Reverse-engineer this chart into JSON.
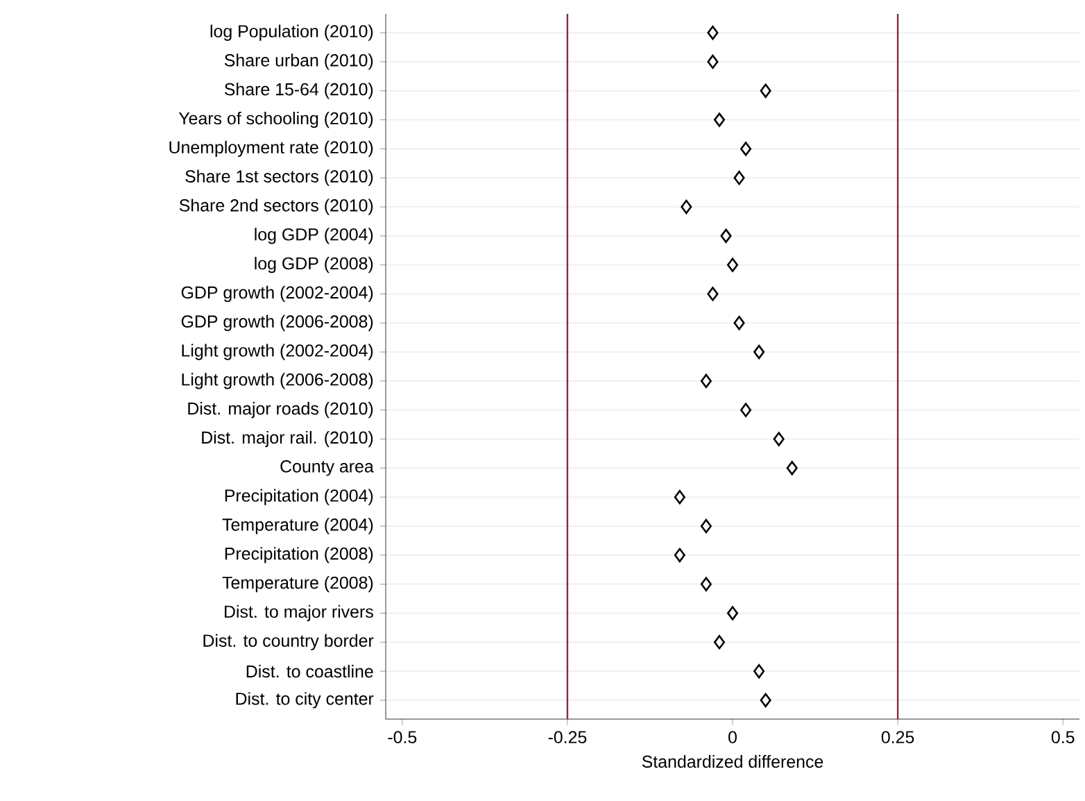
{
  "chart_data": {
    "type": "scatter",
    "orientation": "horizontal",
    "xlabel": "Standardized difference",
    "categories": [
      "log Population (2010)",
      "Share urban (2010)",
      "Share 15-64 (2010)",
      "Years of schooling (2010)",
      "Unemployment rate (2010)",
      "Share 1st sectors (2010)",
      "Share 2nd sectors (2010)",
      "log GDP (2004)",
      "log GDP (2008)",
      "GDP growth (2002-2004)",
      "GDP growth (2006-2008)",
      "Light growth (2002-2004)",
      "Light growth (2006-2008)",
      "Dist. major roads (2010)",
      "Dist. major rail. (2010)",
      "County area",
      "Precipitation (2004)",
      "Temperature (2004)",
      "Precipitation (2008)",
      "Temperature (2008)",
      "Dist. to major rivers",
      "Dist. to country border",
      "Dist. to coastline",
      "Dist. to city center"
    ],
    "series": [
      {
        "color": "#000000",
        "values": [
          -0.03,
          -0.03,
          0.05,
          -0.02,
          0.02,
          0.01,
          -0.07,
          -0.01,
          0.0,
          -0.03,
          0.01,
          0.04,
          -0.04,
          0.02,
          0.07,
          0.09,
          -0.08,
          -0.04,
          -0.08,
          -0.04,
          0.0,
          -0.02,
          0.04,
          0.05
        ]
      }
    ],
    "xlim": [
      -0.525,
      0.525
    ],
    "xticks": [
      -0.5,
      -0.25,
      0,
      0.25,
      0.5
    ],
    "ref_lines": [
      {
        "axis": "x",
        "value": -0.25,
        "color": "#8b2b3b"
      },
      {
        "axis": "x",
        "value": 0.25,
        "color": "#8b2b3b"
      }
    ],
    "grid": "y",
    "marker": "diamond"
  }
}
